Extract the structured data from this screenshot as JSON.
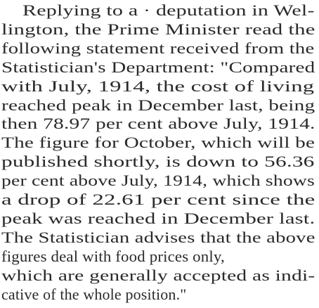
{
  "article": {
    "lines": [
      "Replying to a · deputation in Wel-",
      "lington, the Prime Minister read the",
      "following statement received from the",
      "Statistician's Department: \"Compared",
      "with July, 1914, the cost of living",
      "reached peak in December last, being",
      "then 78.97 per cent above July, 1914.",
      "The figure for October, which will be",
      "published shortly, is down to 56.36",
      "per cent above July, 1914, which shows",
      "a drop of 22.61 per cent since the",
      "peak was reached in December last.",
      "The Statistician advises that the above",
      "figures deal with food prices only,",
      "which are generally accepted as indi-",
      "cative of the whole position.\""
    ]
  }
}
